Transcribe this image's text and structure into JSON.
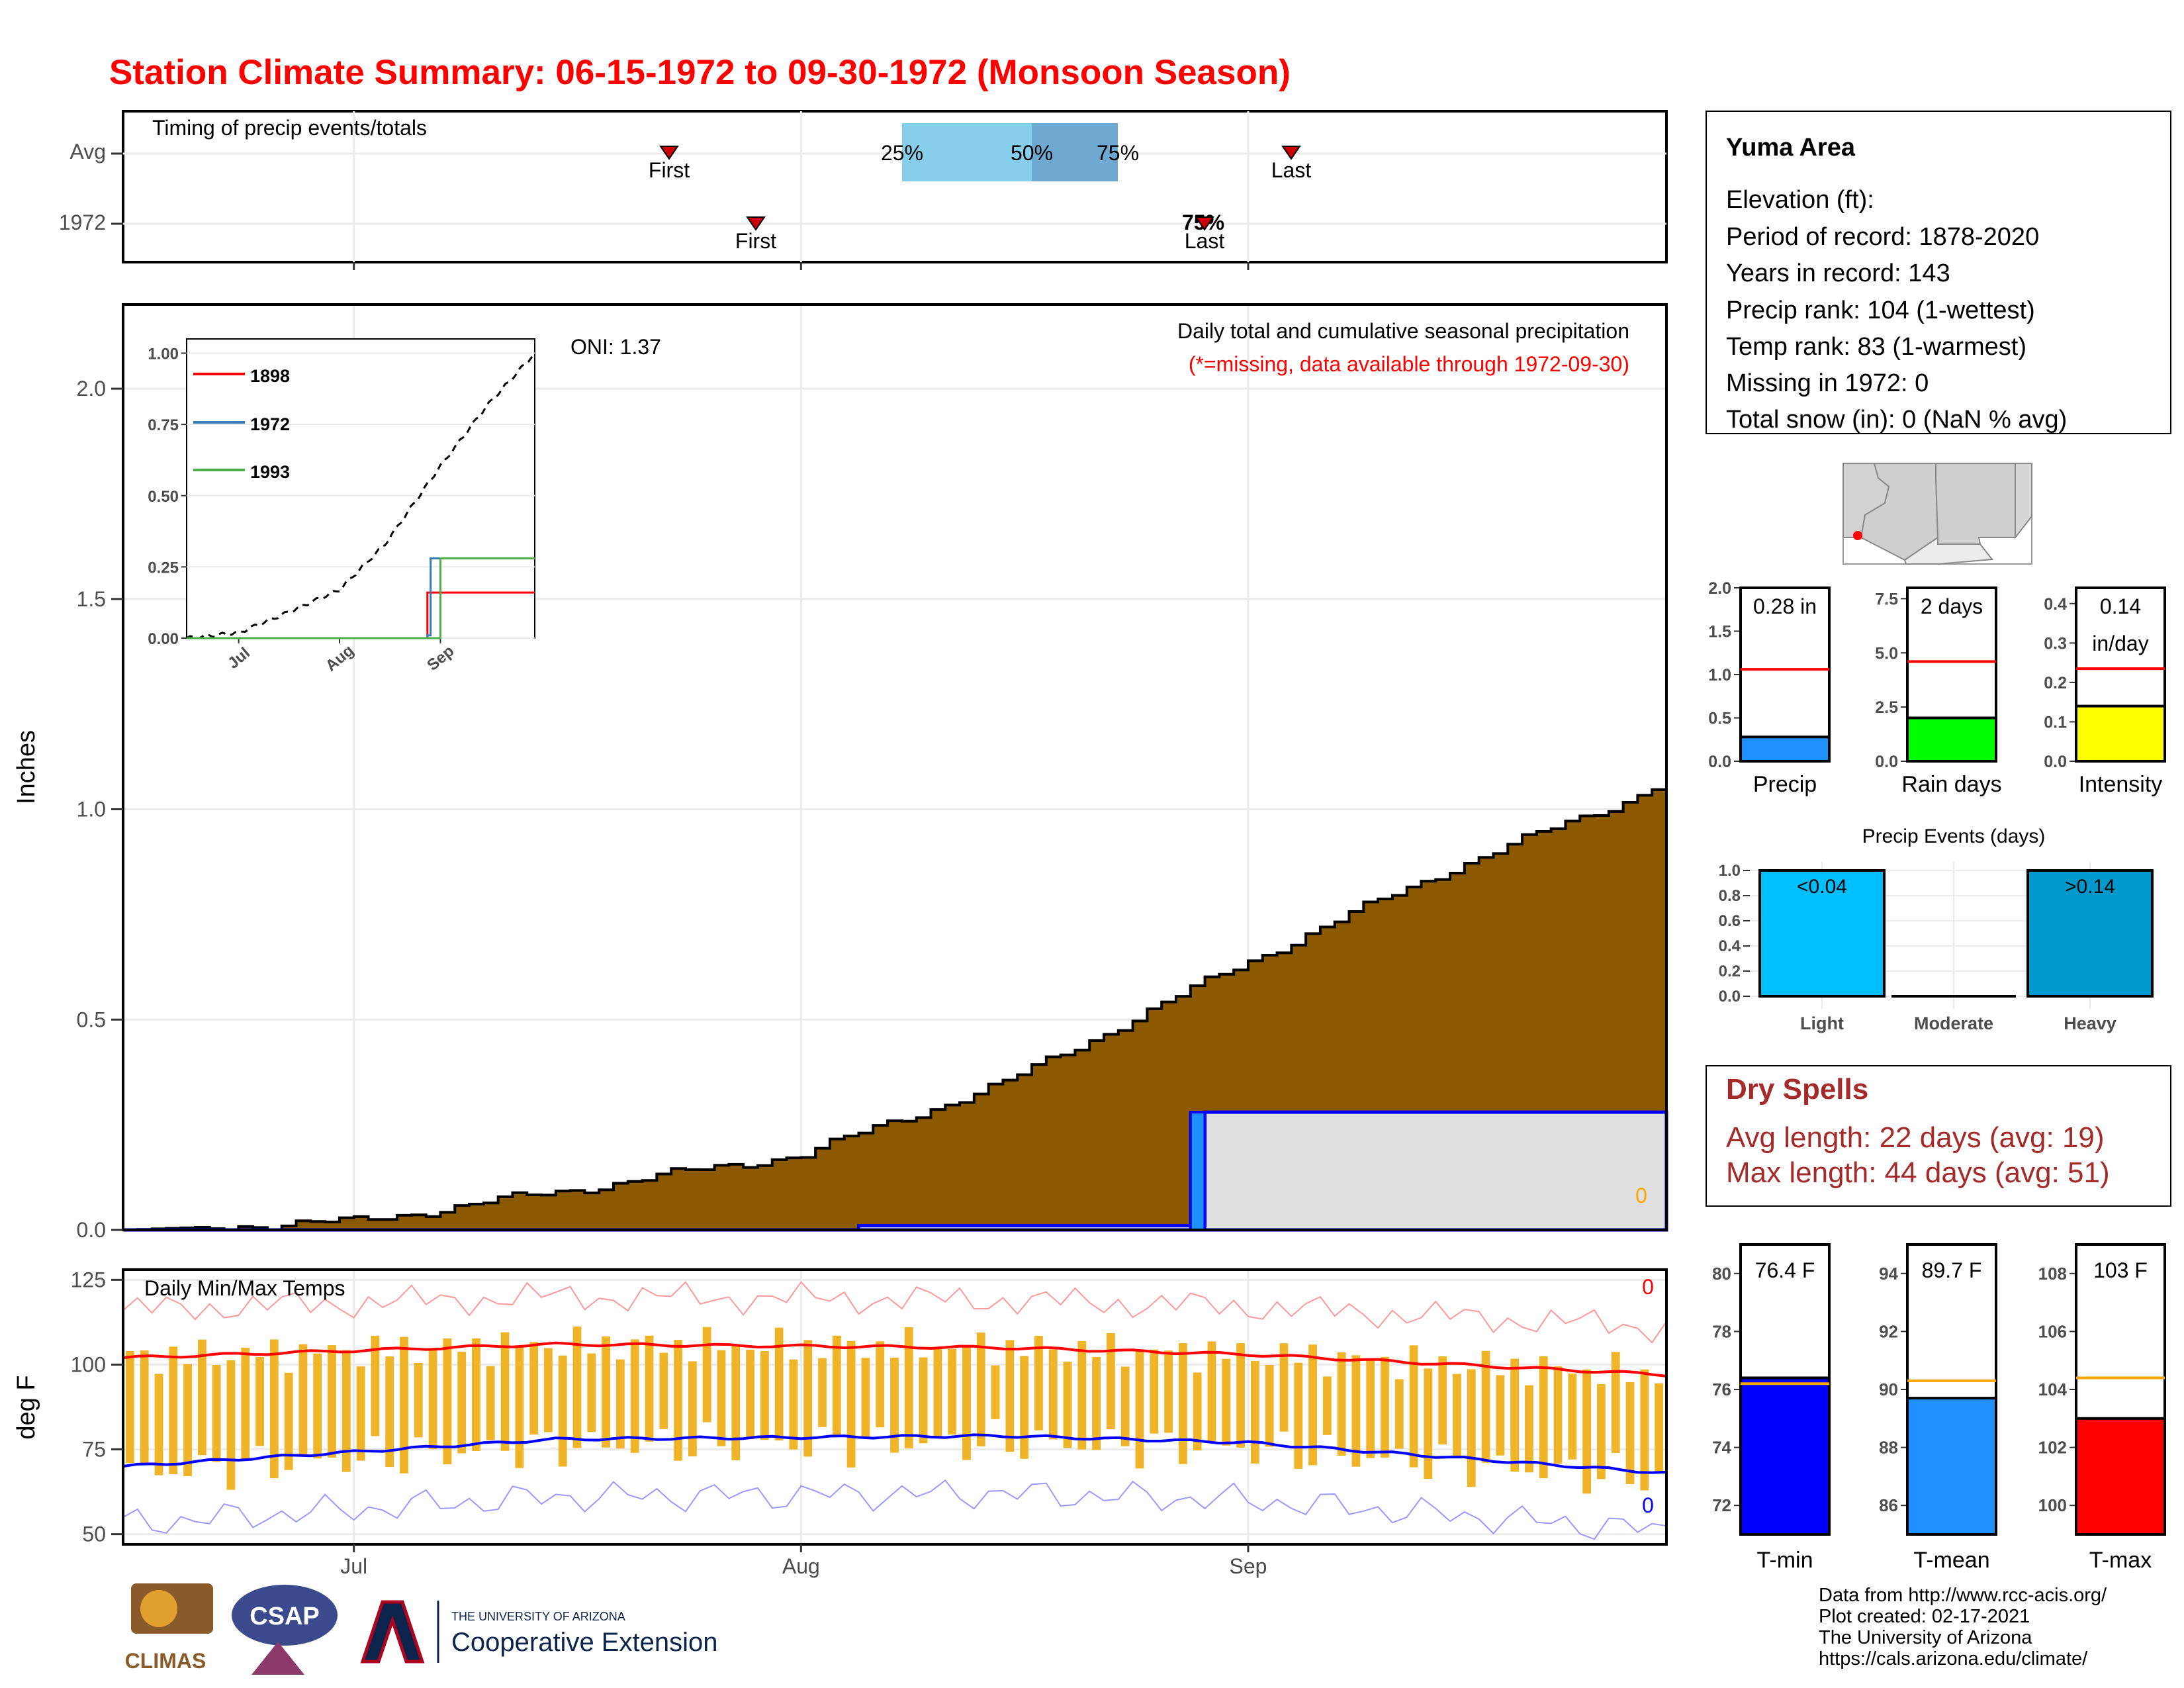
{
  "title": "Station Climate Summary: 06-15-1972 to 09-30-1972 (Monsoon Season)",
  "timing": {
    "label": "Timing of precip events/totals",
    "rows": [
      "Avg",
      "1972"
    ],
    "avg_first_label": "First",
    "avg_last_label": "Last",
    "yr_first_label": "First",
    "yr_last_label": "Last",
    "pct_labels": [
      "25%",
      "50%",
      "75%"
    ],
    "overlap_label": "75%"
  },
  "main": {
    "ylabel": "Inches",
    "note": "Daily total and cumulative seasonal precipitation",
    "missing_note": "(*=missing, data available through 1972-09-30)",
    "oni": "ONI: 1.37",
    "zero_marker": "0",
    "yticks": [
      "0.0",
      "0.5",
      "1.0",
      "1.5",
      "2.0"
    ]
  },
  "inset": {
    "legend": [
      "1898",
      "1972",
      "1993"
    ],
    "yticks": [
      "0.00",
      "0.25",
      "0.50",
      "0.75",
      "1.00"
    ],
    "xticks": [
      "Jul",
      "Aug",
      "Sep"
    ]
  },
  "temps": {
    "label": "Daily Min/Max Temps",
    "ylabel": "deg F",
    "yticks": [
      "50",
      "75",
      "100",
      "125"
    ],
    "max_missing": "0",
    "min_missing": "0"
  },
  "xaxis": [
    "Jul",
    "Aug",
    "Sep"
  ],
  "station": {
    "name": "Yuma Area",
    "lines": [
      "Elevation (ft):",
      "Period of record: 1878-2020",
      "Years in record: 143",
      "Precip rank: 104 (1-wettest)",
      "Temp rank: 83 (1-warmest)",
      "Missing in 1972: 0",
      "Total snow (in): 0 (NaN % avg)"
    ]
  },
  "mini_bars": [
    {
      "label": "Precip",
      "value_text": "0.28 in",
      "value": 0.28,
      "avg": 1.06,
      "ymax": 2.0,
      "ticks": [
        "0.0",
        "0.5",
        "1.0",
        "1.5",
        "2.0"
      ],
      "color": "#1e90ff"
    },
    {
      "label": "Rain days",
      "value_text": "2 days",
      "value": 2,
      "avg": 4.6,
      "ymax": 8.0,
      "ticks": [
        "0.0",
        "2.5",
        "5.0",
        "7.5"
      ],
      "color": "#00ff00"
    },
    {
      "label": "Intensity",
      "value_text": "0.14",
      "value_text2": "in/day",
      "value": 0.14,
      "avg": 0.235,
      "ymax": 0.44,
      "ticks": [
        "0.0",
        "0.1",
        "0.2",
        "0.3",
        "0.4"
      ],
      "color": "#ffff00"
    }
  ],
  "events": {
    "title": "Precip Events (days)",
    "categories": [
      "Light",
      "Moderate",
      "Heavy"
    ],
    "values": [
      1.0,
      0.0,
      1.0
    ],
    "bar_labels": [
      "<0.04",
      "",
      ">0.14"
    ],
    "ticks": [
      "0.0",
      "0.2",
      "0.4",
      "0.6",
      "0.8",
      "1.0"
    ],
    "colors": [
      "#00bfff",
      "#00bfff",
      "#0099cc"
    ]
  },
  "dry": {
    "title": "Dry Spells",
    "avg": "Avg length: 22 days (avg: 19)",
    "max": "Max length: 44 days (avg: 51)"
  },
  "temp_bars": [
    {
      "label": "T-min",
      "value_text": "76.4 F",
      "value": 76.4,
      "avg": 76.2,
      "ymin": 71,
      "ymax": 81,
      "ticks": [
        "72",
        "74",
        "76",
        "78",
        "80"
      ],
      "color": "#0000ff"
    },
    {
      "label": "T-mean",
      "value_text": "89.7 F",
      "value": 89.7,
      "avg": 90.3,
      "ymin": 85,
      "ymax": 95,
      "ticks": [
        "86",
        "88",
        "90",
        "92",
        "94"
      ],
      "color": "#1e90ff"
    },
    {
      "label": "T-max",
      "value_text": "103 F",
      "value": 103.0,
      "avg": 104.4,
      "ymin": 99,
      "ymax": 109,
      "ticks": [
        "100",
        "102",
        "104",
        "106",
        "108"
      ],
      "color": "#ff0000"
    }
  ],
  "footer": [
    "Data from http://www.rcc-acis.org/",
    "Plot created: 02-17-2021",
    "The University of Arizona",
    "https://cals.arizona.edu/climate/"
  ],
  "logos": {
    "climas": "CLIMAS",
    "csap": "CSAP",
    "ua_small": "THE UNIVERSITY OF ARIZONA",
    "ua_big": "Cooperative Extension"
  },
  "chart_data": [
    {
      "type": "area",
      "title": "Daily total and cumulative seasonal precipitation",
      "ylabel": "Inches",
      "ylim": [
        0,
        2.2
      ],
      "x_range": [
        "1972-06-15",
        "1972-09-30"
      ],
      "series": [
        {
          "name": "cumulative average precipitation",
          "x": [
            "1972-06-15",
            "1972-07-01",
            "1972-07-15",
            "1972-08-01",
            "1972-08-15",
            "1972-09-01",
            "1972-09-15",
            "1972-09-30"
          ],
          "values": [
            0.0,
            0.02,
            0.09,
            0.18,
            0.35,
            0.64,
            0.86,
            1.06
          ]
        },
        {
          "name": "1972 cumulative precipitation",
          "x": [
            "1972-06-15",
            "1972-08-05",
            "1972-08-28",
            "1972-08-29",
            "1972-09-30"
          ],
          "values": [
            0.0,
            0.01,
            0.01,
            0.28,
            0.28
          ]
        }
      ]
    },
    {
      "type": "line",
      "title": "Daily Min/Max Temps",
      "ylabel": "deg F",
      "ylim": [
        47,
        128
      ],
      "series": [
        {
          "name": "avg max",
          "x": [
            "1972-06-15",
            "1972-07-15",
            "1972-08-15",
            "1972-09-01",
            "1972-09-30"
          ],
          "values": [
            102,
            106,
            105,
            103,
            97
          ]
        },
        {
          "name": "avg min",
          "x": [
            "1972-06-15",
            "1972-07-15",
            "1972-08-15",
            "1972-09-01",
            "1972-09-30"
          ],
          "values": [
            70,
            78,
            79,
            77,
            68
          ]
        }
      ]
    },
    {
      "type": "line",
      "title": "inset cumulative",
      "ylim": [
        0,
        1.05
      ],
      "series": [
        {
          "name": "1898",
          "x": [
            "1972-06-15",
            "1972-08-25",
            "1972-08-28",
            "1972-09-30"
          ],
          "values": [
            0,
            0,
            0.16,
            0.16
          ]
        },
        {
          "name": "1972",
          "x": [
            "1972-06-15",
            "1972-08-28",
            "1972-08-29",
            "1972-09-30"
          ],
          "values": [
            0,
            0.01,
            0.28,
            0.28
          ]
        },
        {
          "name": "1993",
          "x": [
            "1972-06-15",
            "1972-08-28",
            "1972-09-01",
            "1972-09-30"
          ],
          "values": [
            0,
            0,
            0.28,
            0.28
          ]
        }
      ]
    }
  ]
}
